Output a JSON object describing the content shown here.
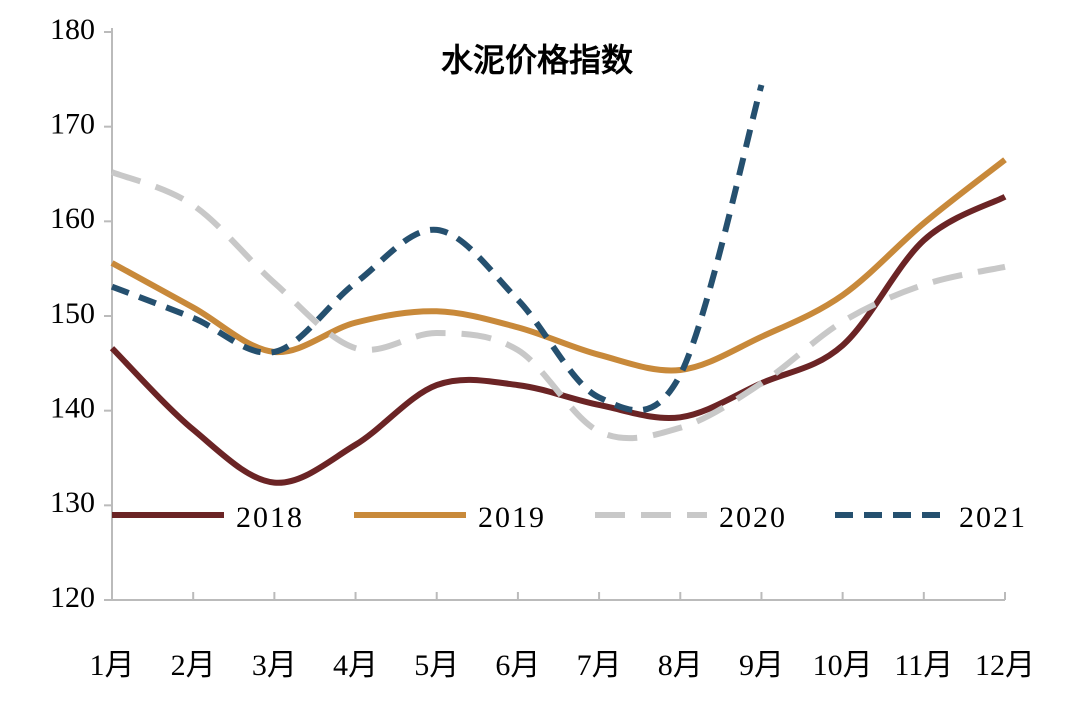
{
  "chart_data": {
    "type": "line",
    "title": "水泥价格指数",
    "categories": [
      "1月",
      "2月",
      "3月",
      "4月",
      "5月",
      "6月",
      "7月",
      "8月",
      "9月",
      "10月",
      "11月",
      "12月"
    ],
    "series": [
      {
        "name": "2018",
        "color": "#6b2425",
        "dash": "solid",
        "values": [
          146.6,
          138.0,
          132.4,
          136.4,
          142.7,
          142.7,
          140.6,
          139.3,
          142.9,
          146.9,
          158.0,
          162.6
        ]
      },
      {
        "name": "2019",
        "color": "#c8893a",
        "dash": "solid",
        "values": [
          155.6,
          150.9,
          146.2,
          149.3,
          150.5,
          148.8,
          145.9,
          144.3,
          147.8,
          152.2,
          159.8,
          166.5
        ]
      },
      {
        "name": "2020",
        "color": "#c8c8c8",
        "dash": "long-dash",
        "values": [
          165.2,
          161.7,
          153.5,
          146.6,
          148.2,
          146.4,
          137.8,
          138.2,
          142.9,
          149.4,
          153.3,
          155.2
        ]
      },
      {
        "name": "2021",
        "color": "#25506f",
        "dash": "dash",
        "values": [
          153.1,
          149.8,
          146.2,
          153.5,
          159.1,
          151.7,
          141.4,
          143.8,
          174.4,
          null,
          null,
          null
        ]
      }
    ],
    "ylim": [
      120,
      180
    ],
    "yticks": [
      120,
      130,
      140,
      150,
      160,
      170,
      180
    ],
    "smooth": true,
    "legend": "bottom"
  }
}
